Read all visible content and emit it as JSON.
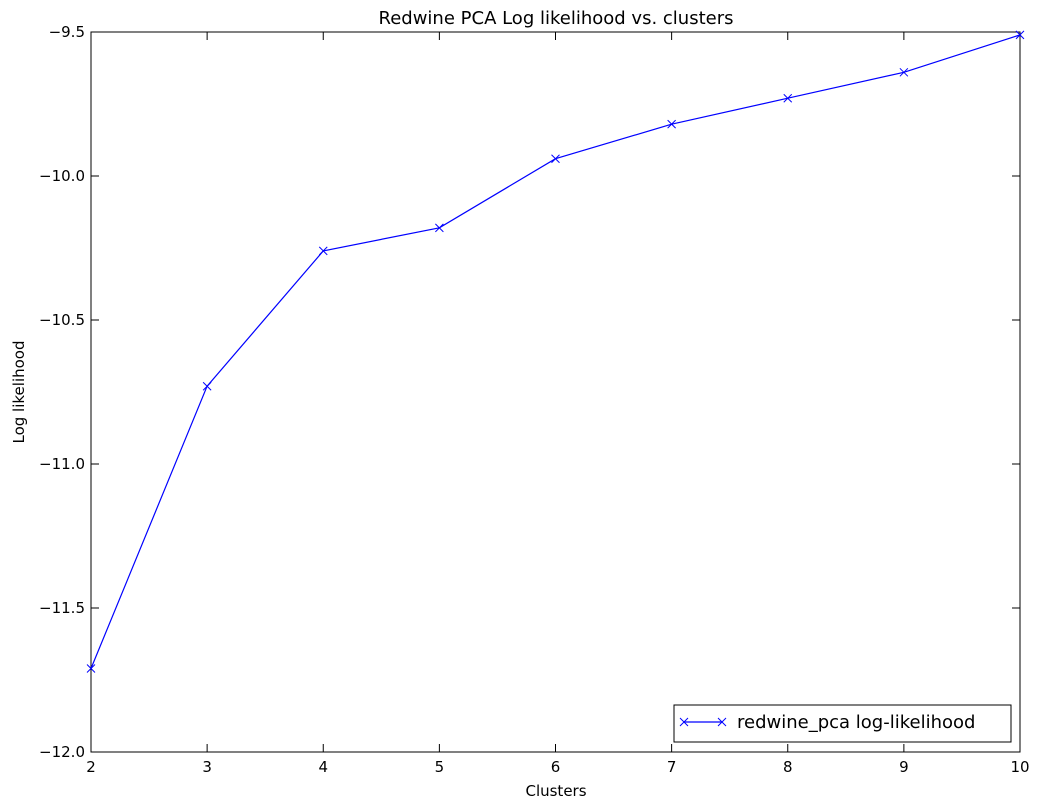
{
  "chart_data": {
    "type": "line",
    "title": "Redwine PCA Log likelihood vs. clusters",
    "xlabel": "Clusters",
    "ylabel": "Log likelihood",
    "xlim": [
      2,
      10
    ],
    "ylim": [
      -12.0,
      -9.5
    ],
    "x_ticks": [
      "2",
      "3",
      "4",
      "5",
      "6",
      "7",
      "8",
      "9",
      "10"
    ],
    "y_ticks": [
      "−9.5",
      "−10.0",
      "−10.5",
      "−11.0",
      "−11.5",
      "−12.0"
    ],
    "grid": false,
    "legend_position": "lower-right",
    "series": [
      {
        "name": "redwine_pca log-likelihood",
        "color": "#0000ff",
        "marker": "x",
        "x": [
          2,
          3,
          4,
          5,
          6,
          7,
          8,
          9,
          10
        ],
        "y": [
          -11.71,
          -10.73,
          -10.26,
          -10.18,
          -9.94,
          -9.82,
          -9.73,
          -9.64,
          -9.51
        ]
      }
    ]
  }
}
